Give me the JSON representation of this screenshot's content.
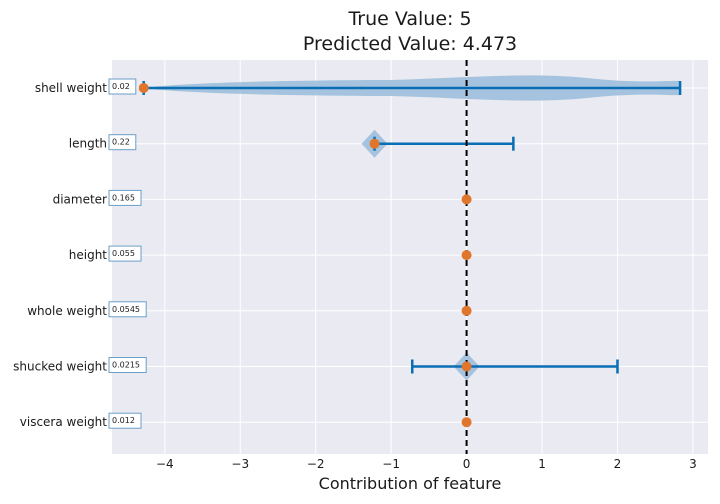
{
  "chart_data": {
    "type": "violin",
    "title_lines": [
      "True Value: 5",
      "Predicted Value: 4.473"
    ],
    "xlabel": "Contribution of feature",
    "ylabel": "",
    "xlim": [
      -4.7,
      3.2
    ],
    "xticks": [
      -4,
      -3,
      -2,
      -1,
      0,
      1,
      2,
      3
    ],
    "xtick_labels": [
      "−4",
      "−3",
      "−2",
      "−1",
      "0",
      "1",
      "2",
      "3"
    ],
    "grid": true,
    "reference_line_x": 0,
    "features": [
      {
        "name": "shell weight",
        "value_label": "0.02",
        "contribution": -4.28,
        "range": [
          -4.28,
          2.83
        ],
        "violin": "wide"
      },
      {
        "name": "length",
        "value_label": "0.22",
        "contribution": -1.22,
        "range": [
          -1.22,
          0.62
        ],
        "violin": "diamond"
      },
      {
        "name": "diameter",
        "value_label": "0.165",
        "contribution": 0.0,
        "range": [
          0,
          0
        ],
        "violin": "none"
      },
      {
        "name": "height",
        "value_label": "0.055",
        "contribution": 0.0,
        "range": [
          0,
          0
        ],
        "violin": "none"
      },
      {
        "name": "whole weight",
        "value_label": "0.0545",
        "contribution": 0.0,
        "range": [
          0,
          0
        ],
        "violin": "none"
      },
      {
        "name": "shucked weight",
        "value_label": "0.0215",
        "contribution": 0.0,
        "range": [
          -0.72,
          2.0
        ],
        "violin": "diamond"
      },
      {
        "name": "viscera weight",
        "value_label": "0.012",
        "contribution": 0.0,
        "range": [
          0,
          0
        ],
        "violin": "none"
      }
    ],
    "colors": {
      "background": "#eaeaf2",
      "grid": "#ffffff",
      "violin_fill": "#9dbfdc",
      "range_line": "#0a6eb4",
      "point": "#e0762b",
      "reference_line": "#000000",
      "label_box_border": "#6a9fc8"
    }
  }
}
